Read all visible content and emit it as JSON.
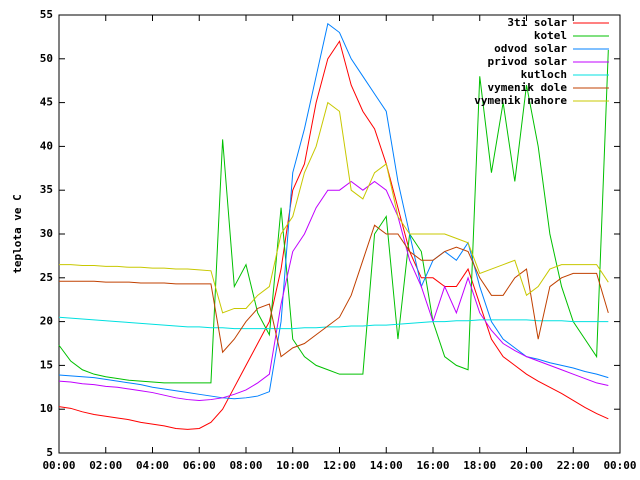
{
  "chart_data": {
    "type": "line",
    "ylabel": "teplota ve C",
    "x": [
      0,
      0.5,
      1,
      1.5,
      2,
      2.5,
      3,
      3.5,
      4,
      4.5,
      5,
      5.5,
      6,
      6.5,
      7,
      7.5,
      8,
      8.5,
      9,
      9.5,
      10,
      10.5,
      11,
      11.5,
      12,
      12.5,
      13,
      13.5,
      14,
      14.5,
      15,
      15.5,
      16,
      16.5,
      17,
      17.5,
      18,
      18.5,
      19,
      19.5,
      20,
      20.5,
      21,
      21.5,
      22,
      22.5,
      23,
      23.5
    ],
    "xlim": [
      0,
      24
    ],
    "xticks": [
      {
        "value": 0,
        "label": "00:00"
      },
      {
        "value": 2,
        "label": "02:00"
      },
      {
        "value": 4,
        "label": "04:00"
      },
      {
        "value": 6,
        "label": "06:00"
      },
      {
        "value": 8,
        "label": "08:00"
      },
      {
        "value": 10,
        "label": "10:00"
      },
      {
        "value": 12,
        "label": "12:00"
      },
      {
        "value": 14,
        "label": "14:00"
      },
      {
        "value": 16,
        "label": "16:00"
      },
      {
        "value": 18,
        "label": "18:00"
      },
      {
        "value": 20,
        "label": "20:00"
      },
      {
        "value": 22,
        "label": "22:00"
      },
      {
        "value": 24,
        "label": "00:00"
      }
    ],
    "ylim": [
      5,
      55
    ],
    "yticks": [
      5,
      10,
      15,
      20,
      25,
      30,
      35,
      40,
      45,
      50,
      55
    ],
    "legend": "top-right",
    "series": [
      {
        "name": "3ti solar",
        "color": "#ff0000",
        "values": [
          10.3,
          10.1,
          9.7,
          9.4,
          9.2,
          9.0,
          8.8,
          8.5,
          8.3,
          8.1,
          7.8,
          7.7,
          7.8,
          8.5,
          10,
          12.5,
          15,
          17.5,
          20,
          26,
          35,
          38,
          45,
          50,
          52,
          47,
          44,
          42,
          38,
          33,
          28,
          25,
          25,
          24,
          24,
          26,
          22,
          18,
          16,
          15,
          14,
          13.2,
          12.5,
          11.8,
          11,
          10.2,
          9.5,
          8.9
        ]
      },
      {
        "name": "kotel",
        "color": "#00c000",
        "values": [
          17.3,
          15.5,
          14.5,
          14,
          13.7,
          13.5,
          13.3,
          13.2,
          13.1,
          13,
          13,
          13,
          13,
          13,
          40.8,
          24,
          26.5,
          21,
          18.5,
          33,
          18,
          16,
          15,
          14.5,
          14,
          14,
          14,
          30,
          32,
          18,
          30,
          28,
          20,
          16,
          15,
          14.5,
          48,
          37,
          45,
          36,
          47,
          40,
          30,
          24,
          20,
          18,
          16,
          51
        ]
      },
      {
        "name": "odvod solar",
        "color": "#0080ff",
        "values": [
          13.9,
          13.8,
          13.7,
          13.6,
          13.4,
          13.2,
          13,
          12.8,
          12.5,
          12.3,
          12.1,
          11.9,
          11.7,
          11.5,
          11.3,
          11.2,
          11.3,
          11.5,
          12,
          20,
          37,
          42,
          48,
          54,
          53,
          50,
          48,
          46,
          44,
          36,
          30,
          24,
          27,
          28,
          27,
          29,
          24,
          20,
          18,
          17,
          16,
          15.7,
          15.3,
          15,
          14.7,
          14.3,
          14,
          13.6
        ]
      },
      {
        "name": "privod solar",
        "color": "#c000ff",
        "values": [
          13.2,
          13.1,
          12.9,
          12.8,
          12.6,
          12.5,
          12.3,
          12.1,
          11.9,
          11.6,
          11.3,
          11.1,
          11,
          11.1,
          11.3,
          11.7,
          12.2,
          13,
          14,
          22,
          28,
          30,
          33,
          35,
          35,
          36,
          35,
          36,
          35,
          32,
          27,
          24,
          20,
          24,
          21,
          25,
          21,
          19,
          17.5,
          16.7,
          16,
          15.5,
          15,
          14.5,
          14,
          13.5,
          13,
          12.7
        ]
      },
      {
        "name": "kutloch",
        "color": "#00e0e0",
        "values": [
          20.5,
          20.4,
          20.3,
          20.2,
          20.1,
          20,
          19.9,
          19.8,
          19.7,
          19.6,
          19.5,
          19.4,
          19.4,
          19.3,
          19.3,
          19.2,
          19.2,
          19.2,
          19.2,
          19.2,
          19.2,
          19.3,
          19.3,
          19.4,
          19.4,
          19.5,
          19.5,
          19.6,
          19.6,
          19.7,
          19.8,
          19.9,
          20,
          20,
          20.1,
          20.1,
          20.2,
          20.2,
          20.2,
          20.2,
          20.2,
          20.1,
          20.1,
          20.1,
          20,
          20,
          20,
          20
        ]
      },
      {
        "name": "vymenik dole",
        "color": "#c04000",
        "values": [
          24.6,
          24.6,
          24.6,
          24.6,
          24.5,
          24.5,
          24.5,
          24.4,
          24.4,
          24.4,
          24.3,
          24.3,
          24.3,
          24.3,
          16.5,
          18,
          20,
          21.5,
          22,
          16,
          17,
          17.5,
          18.5,
          19.5,
          20.5,
          23,
          27,
          31,
          30,
          30,
          28,
          27,
          27,
          28,
          28.5,
          28,
          25,
          23,
          23,
          25,
          26,
          18,
          24,
          25,
          25.5,
          25.5,
          25.5,
          21
        ]
      },
      {
        "name": "vymenik nahore",
        "color": "#c8c800",
        "values": [
          26.5,
          26.5,
          26.4,
          26.4,
          26.3,
          26.3,
          26.2,
          26.2,
          26.1,
          26.1,
          26,
          26,
          25.9,
          25.8,
          21,
          21.5,
          21.5,
          23,
          24,
          30,
          32,
          37,
          40,
          45,
          44,
          35,
          34,
          37,
          38,
          32,
          30,
          30,
          30,
          30,
          29.5,
          29,
          25.5,
          26,
          26.5,
          27,
          23,
          24,
          26,
          26.5,
          26.5,
          26.5,
          26.5,
          24.5
        ]
      }
    ]
  }
}
